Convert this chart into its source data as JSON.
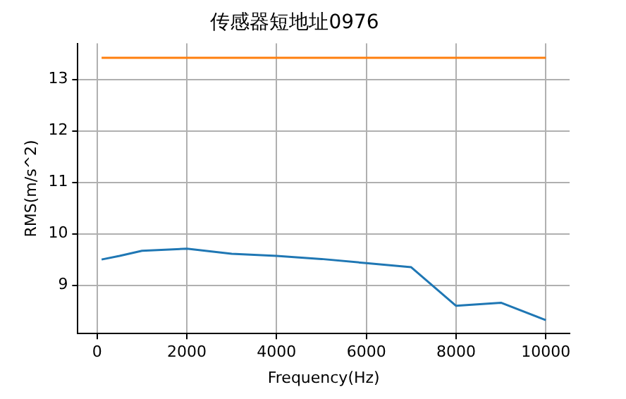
{
  "chart_data": {
    "type": "line",
    "title": "传感器短地址0976",
    "xlabel": "Frequency(Hz)",
    "ylabel": "RMS(m/s^2)",
    "xlim": [
      -430,
      10530
    ],
    "xticks": [
      0,
      2000,
      4000,
      6000,
      8000,
      10000
    ],
    "ylim": [
      8.06,
      13.7
    ],
    "yticks": [
      9,
      10,
      11,
      12,
      13
    ],
    "grid": true,
    "series": [
      {
        "color": "#1f77b4",
        "x": [
          100,
          500,
          1000,
          2000,
          3000,
          4000,
          5000,
          6000,
          7000,
          8000,
          9000,
          10000
        ],
        "values": [
          9.5,
          9.57,
          9.67,
          9.71,
          9.61,
          9.57,
          9.51,
          9.43,
          9.35,
          8.6,
          8.66,
          8.32
        ]
      },
      {
        "color": "#ff7f0e",
        "x": [
          100,
          10000
        ],
        "values": [
          13.42,
          13.42
        ]
      }
    ]
  }
}
